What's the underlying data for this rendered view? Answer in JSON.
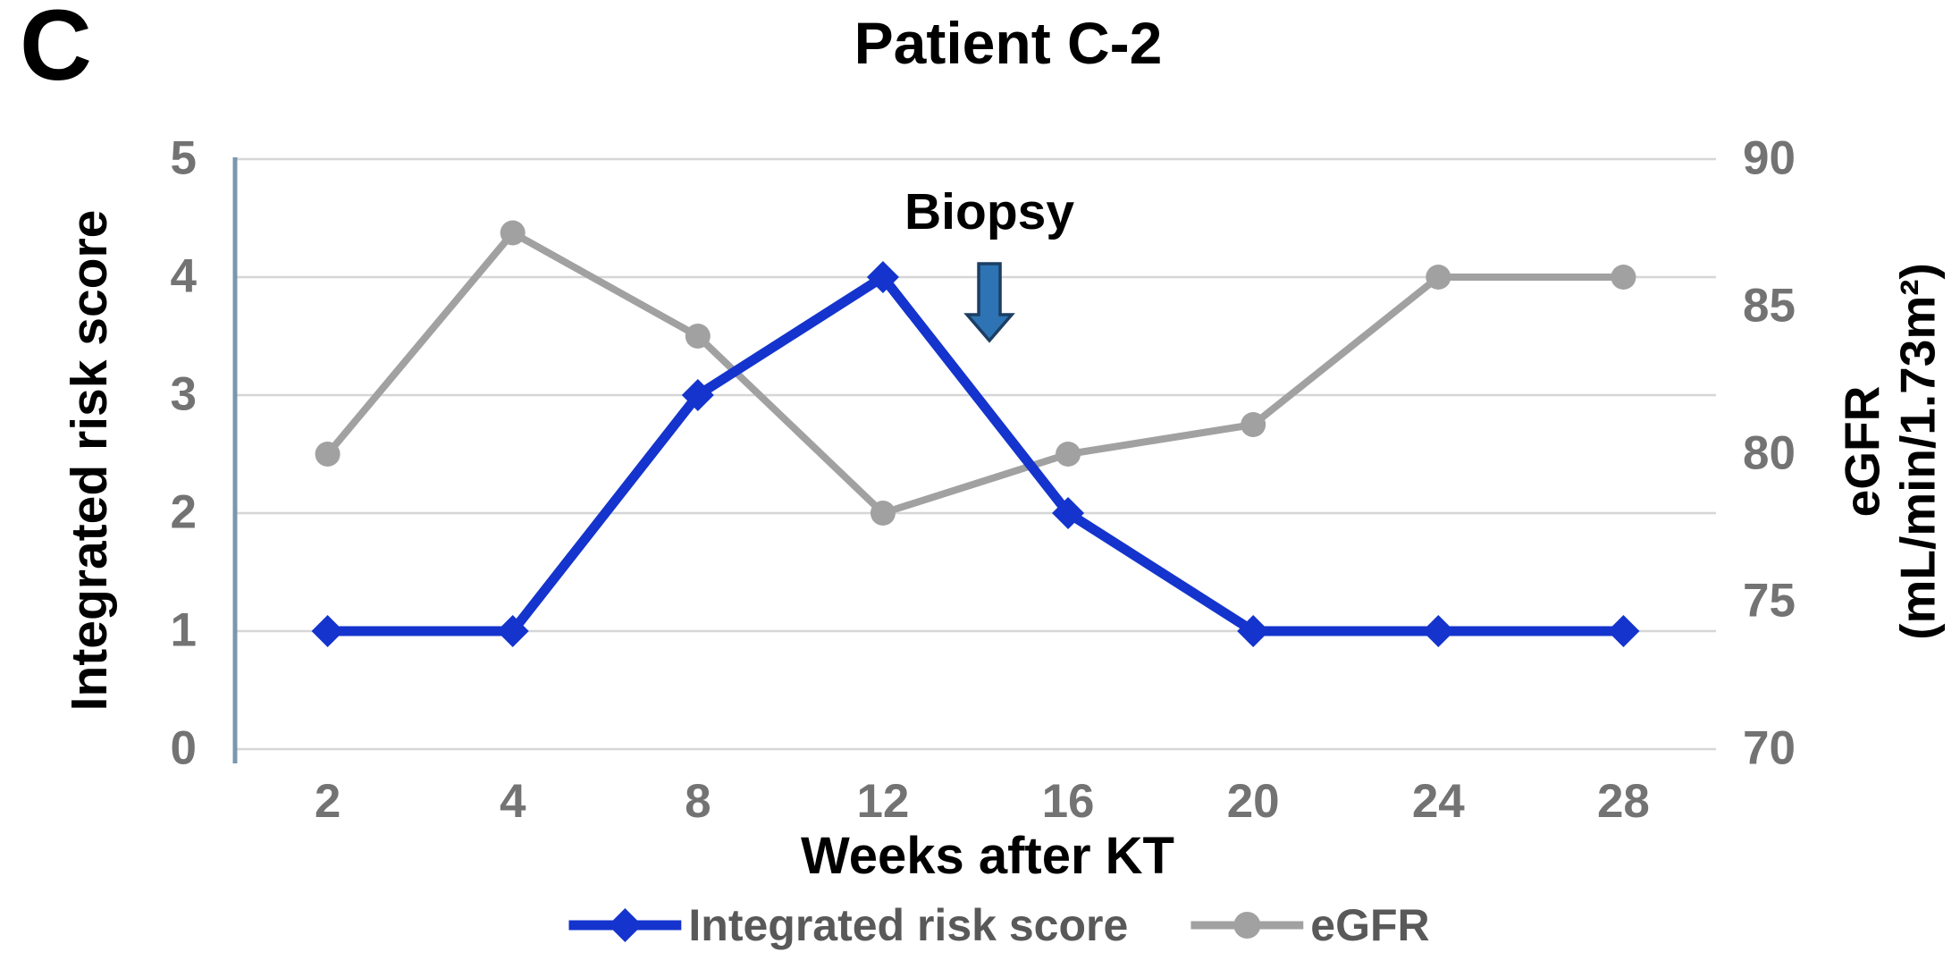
{
  "panel_label": "C",
  "title": "Patient C-2",
  "axes": {
    "left": {
      "label": "Integrated risk score"
    },
    "right": {
      "label_line1": "eGFR",
      "label_line2": "(mL/min/1.73m²)"
    },
    "x": {
      "label": "Weeks after KT"
    }
  },
  "legend": [
    {
      "label": "Integrated risk score",
      "color": "#1434cd",
      "marker": "diamond"
    },
    {
      "label": "eGFR",
      "color": "#a1a1a1",
      "marker": "circle"
    }
  ],
  "colors": {
    "risk_line": "#1434cd",
    "egfr_line": "#a1a1a1",
    "gridline": "#d6d6d6",
    "axis_line": "#7b97ae",
    "tick_text": "#737373",
    "legend_text": "#595959",
    "arrow_fill": "#2e74b5",
    "arrow_stroke": "#1c3e63",
    "text": "#000000"
  },
  "chart_data": {
    "type": "line",
    "title": "Patient C-2",
    "x": [
      2,
      4,
      8,
      12,
      16,
      20,
      24,
      28
    ],
    "xlabel": "Weeks after KT",
    "grid": "horizontal",
    "legend_position": "bottom",
    "series": [
      {
        "name": "Integrated risk score",
        "yaxis": "left",
        "color": "#1434cd",
        "marker": "diamond",
        "values": [
          1,
          1,
          3,
          4,
          2,
          1,
          1,
          1
        ]
      },
      {
        "name": "eGFR",
        "yaxis": "right",
        "color": "#a1a1a1",
        "marker": "circle",
        "values": [
          80,
          87.5,
          84,
          78,
          80,
          81,
          86,
          86
        ]
      }
    ],
    "left_axis": {
      "label": "Integrated risk score",
      "range": [
        0,
        5
      ],
      "ticks": [
        0,
        1,
        2,
        3,
        4,
        5
      ]
    },
    "right_axis": {
      "label": "eGFR (mL/min/1.73m²)",
      "range": [
        70,
        90
      ],
      "ticks": [
        70,
        75,
        80,
        85,
        90
      ]
    },
    "annotation": {
      "label": "Biopsy",
      "x_week": 14.3
    }
  }
}
